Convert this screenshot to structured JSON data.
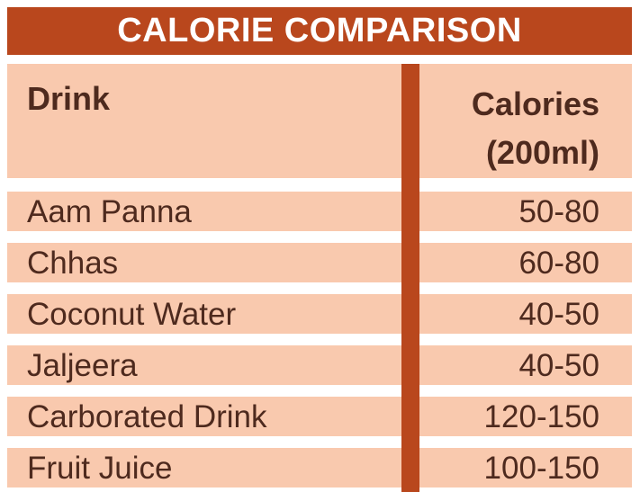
{
  "colors": {
    "accent": "#b9471d",
    "row_fill": "#f9c9ae",
    "text": "#4e2a1e",
    "title_text": "#ffffff"
  },
  "chart_data": {
    "type": "table",
    "title": "CALORIE COMPARISON",
    "columns": [
      "Drink",
      "Calories",
      "(200ml)"
    ],
    "rows": [
      {
        "drink": "Aam Panna",
        "calories": "50-80"
      },
      {
        "drink": "Chhas",
        "calories": "60-80"
      },
      {
        "drink": "Coconut Water",
        "calories": "40-50"
      },
      {
        "drink": "Jaljeera",
        "calories": "40-50"
      },
      {
        "drink": "Carborated Drink",
        "calories": "120-150"
      },
      {
        "drink": "Fruit Juice",
        "calories": "100-150"
      }
    ]
  }
}
